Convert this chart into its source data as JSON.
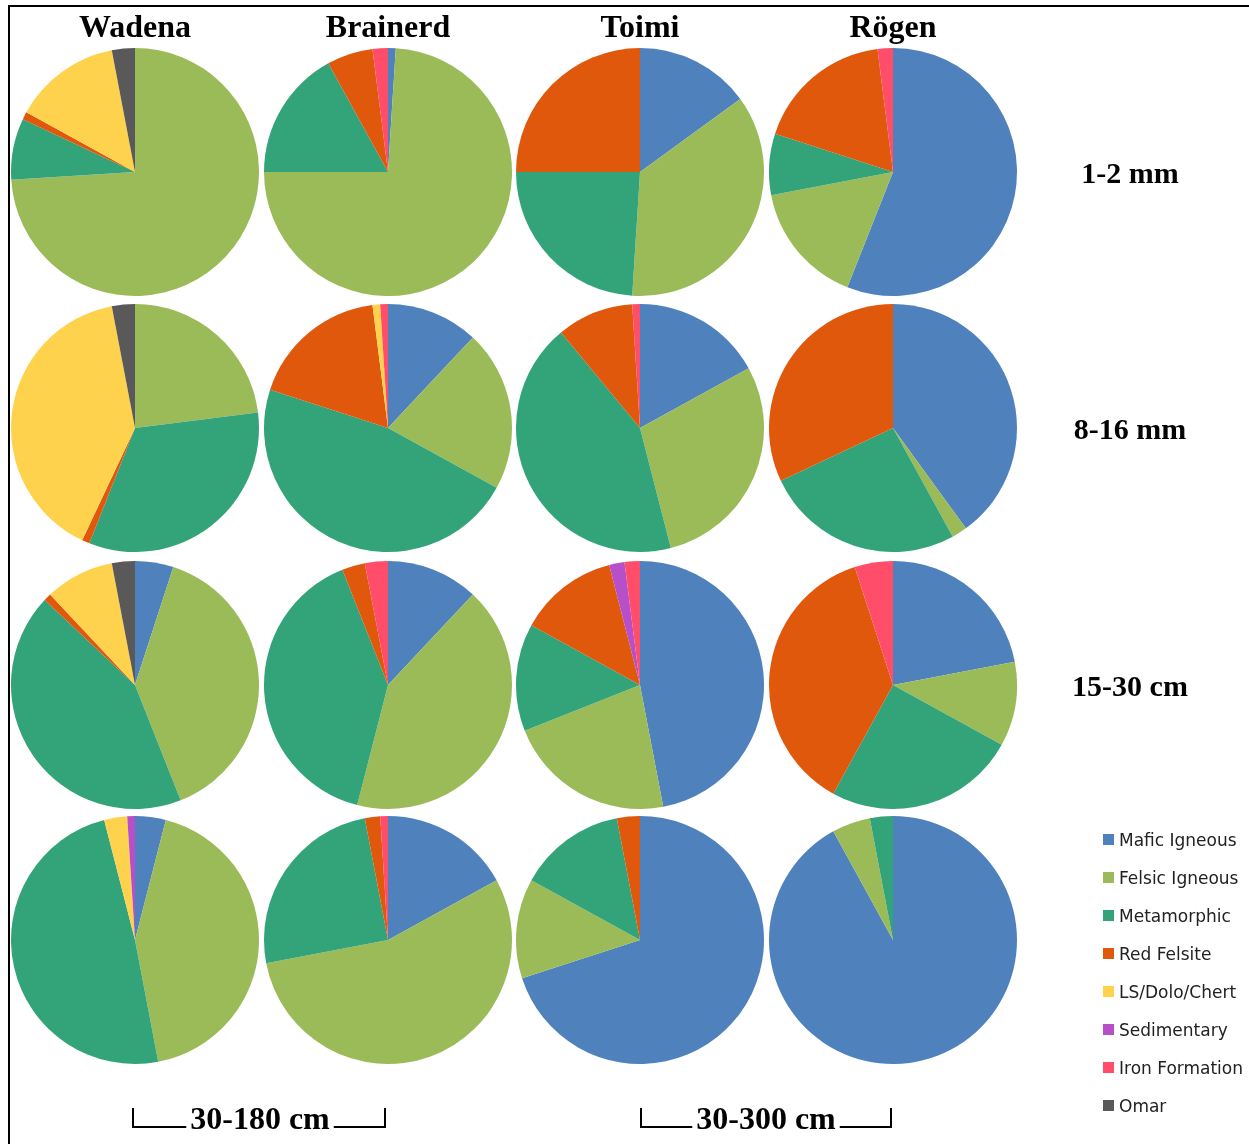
{
  "chart_data": {
    "type": "pie",
    "legend": "right",
    "categories": [
      "Mafic Igneous",
      "Felsic Igneous",
      "Metamorphic",
      "Red Felsite",
      "LS/Dolo/Chert",
      "Sedimentary",
      "Iron Formation",
      "Omar"
    ],
    "colors": [
      "#4f81bd",
      "#9bbb59",
      "#33a37a",
      "#e0580b",
      "#ffd24d",
      "#b64fc8",
      "#ff4d6a",
      "#595959"
    ],
    "annotations": [
      "Wadena",
      "Brainerd",
      "Toimi",
      "Rögen",
      "1-2 mm",
      "8-16 mm",
      "15-30 cm",
      "30-180 cm",
      "30-300 cm"
    ],
    "series": [
      {
        "values": [
          0,
          74,
          8,
          1,
          14,
          0,
          0,
          3
        ]
      },
      {
        "values": [
          1,
          74,
          17,
          6,
          0,
          0,
          2,
          0
        ]
      },
      {
        "values": [
          15,
          36,
          24,
          25,
          0,
          0,
          0,
          0
        ]
      },
      {
        "values": [
          56,
          16,
          8,
          18,
          0,
          0,
          2,
          0
        ]
      },
      {
        "values": [
          0,
          23,
          33,
          1,
          40,
          0,
          0,
          3
        ]
      },
      {
        "values": [
          12,
          21,
          47,
          18,
          1,
          0,
          1,
          0
        ]
      },
      {
        "values": [
          17,
          29,
          43,
          10,
          0,
          0,
          1,
          0
        ]
      },
      {
        "values": [
          40,
          2,
          26,
          32,
          0,
          0,
          0,
          0
        ]
      },
      {
        "values": [
          5,
          39,
          43,
          1,
          9,
          0,
          0,
          3
        ]
      },
      {
        "values": [
          12,
          42,
          40,
          3,
          0,
          0,
          3,
          0
        ]
      },
      {
        "values": [
          47,
          22,
          14,
          13,
          0,
          2,
          2,
          0
        ]
      },
      {
        "values": [
          22,
          11,
          25,
          37,
          0,
          0,
          5,
          0
        ]
      },
      {
        "values": [
          4,
          43,
          49,
          0,
          3,
          1,
          0,
          0
        ]
      },
      {
        "values": [
          17,
          55,
          25,
          2,
          0,
          0,
          1,
          0
        ]
      },
      {
        "values": [
          70,
          13,
          14,
          3,
          0,
          0,
          0,
          0
        ]
      },
      {
        "values": [
          92,
          5,
          3,
          0,
          0,
          0,
          0,
          0
        ]
      }
    ]
  }
}
